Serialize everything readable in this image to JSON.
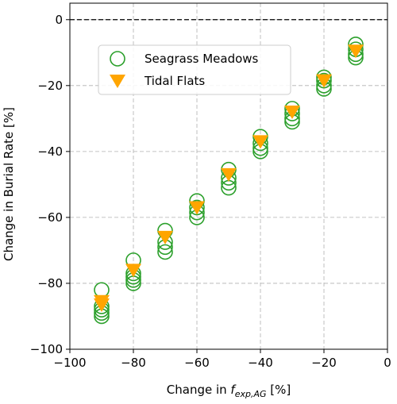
{
  "chart_data": {
    "type": "scatter",
    "xlabel": {
      "prefix": "Change in ",
      "symbol": "f",
      "subscript": "exp,AG",
      "suffix": " [%]"
    },
    "ylabel": "Change in Burial Rate [%]",
    "xlim": [
      -100,
      0
    ],
    "ylim": [
      -100,
      5
    ],
    "xticks": [
      {
        "value": -100,
        "label": "−100"
      },
      {
        "value": -80,
        "label": "−80"
      },
      {
        "value": -60,
        "label": "−60"
      },
      {
        "value": -40,
        "label": "−40"
      },
      {
        "value": -20,
        "label": "−20"
      },
      0
    ],
    "yticks": [
      {
        "value": -100,
        "label": "−100"
      },
      {
        "value": -80,
        "label": "−80"
      },
      {
        "value": -60,
        "label": "−60"
      },
      {
        "value": -40,
        "label": "−40"
      },
      {
        "value": -20,
        "label": "−20"
      },
      0
    ],
    "grid": true,
    "hline": 0,
    "legend": "upper left",
    "series": [
      {
        "name": "Seagrass Meadows",
        "color": "#2ca02c",
        "marker": "open-circle",
        "x": [
          -90,
          -90,
          -90,
          -90,
          -90,
          -80,
          -80,
          -80,
          -80,
          -80,
          -70,
          -70,
          -70,
          -70,
          -60,
          -60,
          -60,
          -60,
          -50,
          -50,
          -50,
          -50,
          -40,
          -40,
          -40,
          -40,
          -30,
          -30,
          -30,
          -30,
          -20,
          -20,
          -20,
          -20,
          -10,
          -10,
          -10,
          -10
        ],
        "values": [
          -82,
          -87,
          -88,
          -89,
          -90,
          -73,
          -77,
          -78,
          -79,
          -80,
          -64,
          -67.5,
          -69,
          -70.5,
          -55,
          -57,
          -58.5,
          -60,
          -45.5,
          -48,
          -49.5,
          -51,
          -35.5,
          -37.5,
          -39,
          -40,
          -27,
          -28.5,
          -30,
          -31,
          -17.5,
          -18.5,
          -20,
          -21,
          -7.5,
          -9,
          -10.5,
          -11.5
        ]
      },
      {
        "name": "Tidal Flats",
        "color": "#ffa500",
        "marker": "triangle-down",
        "x": [
          -90,
          -90,
          -80,
          -70,
          -60,
          -50,
          -40,
          -30,
          -20,
          -10
        ],
        "values": [
          -85.5,
          -86.5,
          -76,
          -66,
          -57,
          -47,
          -37,
          -28,
          -18.5,
          -9.5
        ]
      }
    ]
  }
}
